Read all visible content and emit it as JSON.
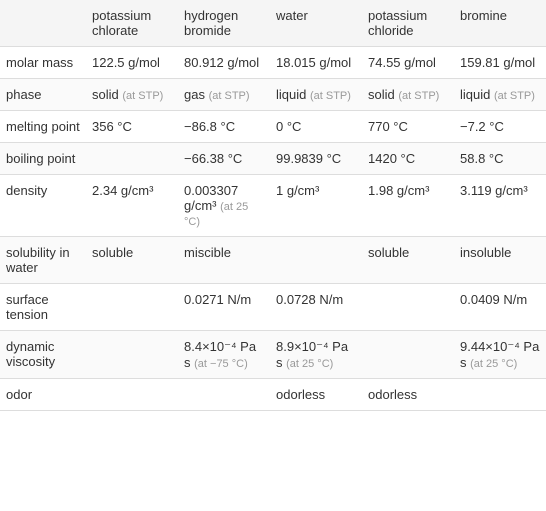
{
  "columns": [
    "",
    "potassium chlorate",
    "hydrogen bromide",
    "water",
    "potassium chloride",
    "bromine"
  ],
  "rows": [
    {
      "label": "molar mass",
      "cells": [
        {
          "main": "122.5 g/mol",
          "sub": ""
        },
        {
          "main": "80.912 g/mol",
          "sub": ""
        },
        {
          "main": "18.015 g/mol",
          "sub": ""
        },
        {
          "main": "74.55 g/mol",
          "sub": ""
        },
        {
          "main": "159.81 g/mol",
          "sub": ""
        }
      ]
    },
    {
      "label": "phase",
      "cells": [
        {
          "main": "solid",
          "sub": "(at STP)"
        },
        {
          "main": "gas",
          "sub": "(at STP)"
        },
        {
          "main": "liquid",
          "sub": "(at STP)"
        },
        {
          "main": "solid",
          "sub": "(at STP)"
        },
        {
          "main": "liquid",
          "sub": "(at STP)"
        }
      ]
    },
    {
      "label": "melting point",
      "cells": [
        {
          "main": "356 °C",
          "sub": ""
        },
        {
          "main": "−86.8 °C",
          "sub": ""
        },
        {
          "main": "0 °C",
          "sub": ""
        },
        {
          "main": "770 °C",
          "sub": ""
        },
        {
          "main": "−7.2 °C",
          "sub": ""
        }
      ]
    },
    {
      "label": "boiling point",
      "cells": [
        {
          "main": "",
          "sub": ""
        },
        {
          "main": "−66.38 °C",
          "sub": ""
        },
        {
          "main": "99.9839 °C",
          "sub": ""
        },
        {
          "main": "1420 °C",
          "sub": ""
        },
        {
          "main": "58.8 °C",
          "sub": ""
        }
      ]
    },
    {
      "label": "density",
      "cells": [
        {
          "main": "2.34 g/cm³",
          "sub": ""
        },
        {
          "main": "0.003307 g/cm³",
          "sub": "(at 25 °C)"
        },
        {
          "main": "1 g/cm³",
          "sub": ""
        },
        {
          "main": "1.98 g/cm³",
          "sub": ""
        },
        {
          "main": "3.119 g/cm³",
          "sub": ""
        }
      ]
    },
    {
      "label": "solubility in water",
      "cells": [
        {
          "main": "soluble",
          "sub": ""
        },
        {
          "main": "miscible",
          "sub": ""
        },
        {
          "main": "",
          "sub": ""
        },
        {
          "main": "soluble",
          "sub": ""
        },
        {
          "main": "insoluble",
          "sub": ""
        }
      ]
    },
    {
      "label": "surface tension",
      "cells": [
        {
          "main": "",
          "sub": ""
        },
        {
          "main": "0.0271 N/m",
          "sub": ""
        },
        {
          "main": "0.0728 N/m",
          "sub": ""
        },
        {
          "main": "",
          "sub": ""
        },
        {
          "main": "0.0409 N/m",
          "sub": ""
        }
      ]
    },
    {
      "label": "dynamic viscosity",
      "cells": [
        {
          "main": "",
          "sub": ""
        },
        {
          "main": "8.4×10⁻⁴ Pa s",
          "sub": "(at −75 °C)"
        },
        {
          "main": "8.9×10⁻⁴ Pa s",
          "sub": "(at 25 °C)"
        },
        {
          "main": "",
          "sub": ""
        },
        {
          "main": "9.44×10⁻⁴ Pa s",
          "sub": "(at 25 °C)"
        }
      ]
    },
    {
      "label": "odor",
      "cells": [
        {
          "main": "",
          "sub": ""
        },
        {
          "main": "",
          "sub": ""
        },
        {
          "main": "odorless",
          "sub": ""
        },
        {
          "main": "odorless",
          "sub": ""
        },
        {
          "main": "",
          "sub": ""
        }
      ]
    }
  ],
  "styles": {
    "cell_bg_header": "#f5f5f5",
    "border_color": "#ddd",
    "text_color": "#333",
    "sub_color": "#999",
    "fontsize_main": 13,
    "fontsize_sub": 11
  }
}
